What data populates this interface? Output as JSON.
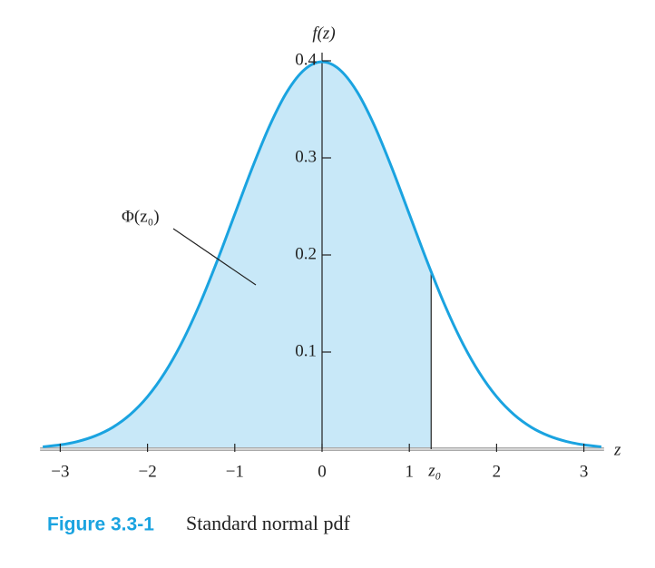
{
  "chart_data": {
    "type": "line",
    "xlabel": "z",
    "ylabel": "f(z)",
    "annotation": "Φ(z₀)",
    "marker": {
      "label": "z₀",
      "x": 1.25
    },
    "caption_label": "Figure 3.3-1",
    "caption": "Standard normal pdf",
    "x": [
      -3.2,
      -3.0,
      -2.8,
      -2.6,
      -2.4,
      -2.2,
      -2.0,
      -1.8,
      -1.6,
      -1.4,
      -1.2,
      -1.0,
      -0.8,
      -0.6,
      -0.4,
      -0.2,
      0,
      0.2,
      0.4,
      0.6,
      0.8,
      1.0,
      1.2,
      1.4,
      1.6,
      1.8,
      2.0,
      2.2,
      2.4,
      2.6,
      2.8,
      3.0,
      3.2
    ],
    "series": [
      {
        "name": "f(z)",
        "color": "#1aa3e0",
        "fill": "#c8e8f8",
        "values": [
          0.0024,
          0.0044,
          0.0079,
          0.0136,
          0.0224,
          0.0355,
          0.054,
          0.079,
          0.1109,
          0.1497,
          0.1942,
          0.242,
          0.2897,
          0.3332,
          0.3683,
          0.391,
          0.3989,
          0.391,
          0.3683,
          0.3332,
          0.2897,
          0.242,
          0.1942,
          0.1497,
          0.1109,
          0.079,
          0.054,
          0.0355,
          0.0224,
          0.0136,
          0.0079,
          0.0044,
          0.0024
        ]
      }
    ],
    "xlim": [
      -3.2,
      3.2
    ],
    "ylim": [
      0,
      0.41
    ],
    "xticks": [
      {
        "value": -3,
        "label": "−3"
      },
      {
        "value": -2,
        "label": "−2"
      },
      {
        "value": -1,
        "label": "−1"
      },
      0,
      1,
      2,
      3
    ],
    "yticks": [
      0.1,
      0.2,
      0.3,
      0.4
    ]
  }
}
